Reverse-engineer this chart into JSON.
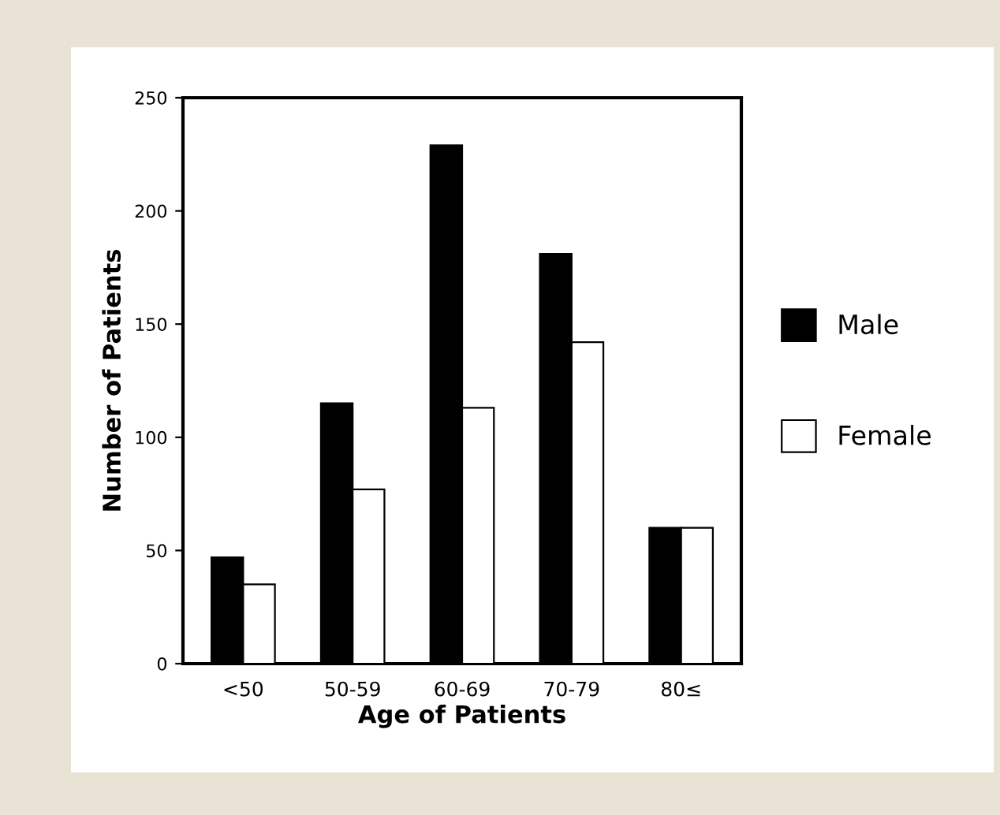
{
  "chart_data": {
    "type": "bar",
    "xlabel": "Age of Patients",
    "ylabel": "Number of Patients",
    "categories": [
      "<50",
      "50-59",
      "60-69",
      "70-79",
      "80≤"
    ],
    "series": [
      {
        "name": "Male",
        "color": "#000000",
        "values": [
          47,
          115,
          229,
          181,
          60
        ]
      },
      {
        "name": "Female",
        "color": "#ffffff",
        "values": [
          35,
          77,
          113,
          142,
          60
        ]
      }
    ],
    "ylim": [
      0,
      250
    ],
    "yticks": [
      0,
      50,
      100,
      150,
      200,
      250
    ],
    "grid": false,
    "legend": "right"
  }
}
